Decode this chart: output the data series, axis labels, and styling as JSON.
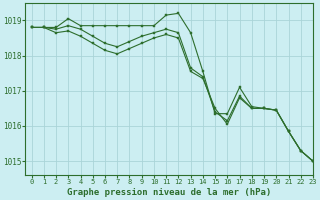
{
  "title": "Graphe pression niveau de la mer (hPa)",
  "background_color": "#cceef2",
  "grid_color": "#aad4d8",
  "line_color": "#2d6e2d",
  "xlim": [
    -0.5,
    23
  ],
  "ylim": [
    1014.6,
    1019.5
  ],
  "yticks": [
    1015,
    1016,
    1017,
    1018,
    1019
  ],
  "xticks": [
    0,
    1,
    2,
    3,
    4,
    5,
    6,
    7,
    8,
    9,
    10,
    11,
    12,
    13,
    14,
    15,
    16,
    17,
    18,
    19,
    20,
    21,
    22,
    23
  ],
  "series1": [
    1018.8,
    1018.8,
    1018.8,
    1019.05,
    1018.85,
    1018.85,
    1018.85,
    1018.85,
    1018.85,
    1018.85,
    1018.85,
    1019.15,
    1019.2,
    1018.65,
    1017.55,
    1016.35,
    1016.35,
    1017.1,
    1016.55,
    1016.5,
    1016.45,
    1015.85,
    1015.3,
    1015.0
  ],
  "series2": [
    1018.8,
    1018.8,
    1018.75,
    1018.85,
    1018.75,
    1018.55,
    1018.35,
    1018.25,
    1018.4,
    1018.55,
    1018.65,
    1018.75,
    1018.65,
    1017.65,
    1017.4,
    1016.4,
    1016.15,
    1016.85,
    1016.5,
    1016.5,
    1016.45,
    1015.85,
    1015.3,
    1015.0
  ],
  "series3": [
    1018.8,
    1018.8,
    1018.65,
    1018.7,
    1018.55,
    1018.35,
    1018.15,
    1018.05,
    1018.2,
    1018.35,
    1018.5,
    1018.6,
    1018.5,
    1017.55,
    1017.35,
    1016.5,
    1016.05,
    1016.8,
    1016.5,
    1016.5,
    1016.45,
    1015.85,
    1015.3,
    1015.0
  ]
}
